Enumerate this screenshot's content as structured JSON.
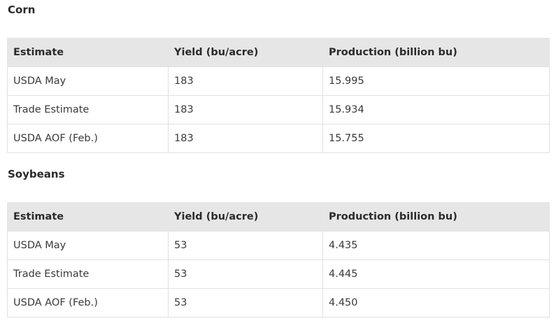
{
  "sections": [
    {
      "title": "Corn",
      "headers": [
        "Estimate",
        "Yield (bu/acre)",
        "Production (billion bu)"
      ],
      "rows": [
        [
          "USDA May",
          "183",
          "15.995"
        ],
        [
          "Trade Estimate",
          "183",
          "15.934"
        ],
        [
          "USDA AOF (Feb.)",
          "183",
          "15.755"
        ]
      ]
    },
    {
      "title": "Soybeans",
      "headers": [
        "Estimate",
        "Yield (bu/acre)",
        "Production (billion bu)"
      ],
      "rows": [
        [
          "USDA May",
          "53",
          "4.435"
        ],
        [
          "Trade Estimate",
          "53",
          "4.445"
        ],
        [
          "USDA AOF (Feb.)",
          "53",
          "4.450"
        ]
      ]
    }
  ]
}
